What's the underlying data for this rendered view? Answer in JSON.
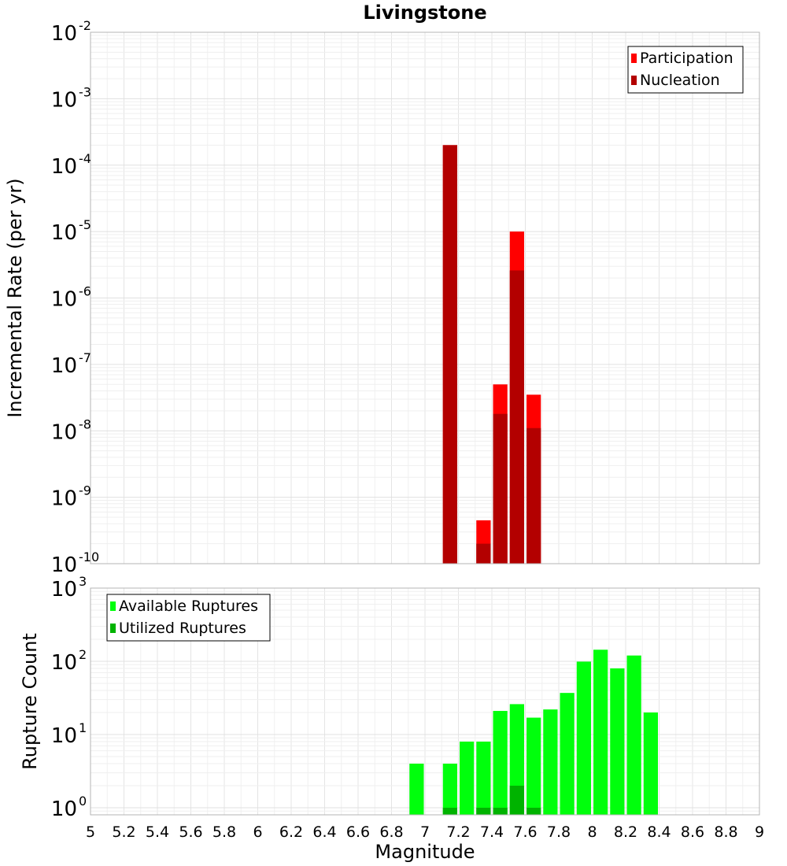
{
  "chart_data": [
    {
      "type": "bar",
      "title": "Livingstone",
      "xlabel": "",
      "ylabel": "Incremental Rate (per yr)",
      "xlim": [
        5,
        9
      ],
      "ylim": [
        1e-10,
        0.01
      ],
      "y_scale": "log",
      "y_tick_exponents": [
        "-10",
        "-9",
        "-8",
        "-7",
        "-6",
        "-5",
        "-4",
        "-3",
        "-2"
      ],
      "grid": true,
      "legend_placement": "top-right",
      "bin_width": 0.1,
      "series": [
        {
          "name": "Participation",
          "color": "#ff0000",
          "points": [
            {
              "x": 7.15,
              "y": 0.0002
            },
            {
              "x": 7.35,
              "y": 4.5e-10
            },
            {
              "x": 7.45,
              "y": 5e-08
            },
            {
              "x": 7.55,
              "y": 1e-05
            },
            {
              "x": 7.65,
              "y": 3.5e-08
            }
          ]
        },
        {
          "name": "Nucleation",
          "color": "#b30000",
          "points": [
            {
              "x": 7.15,
              "y": 0.0002
            },
            {
              "x": 7.35,
              "y": 2e-10
            },
            {
              "x": 7.45,
              "y": 1.8e-08
            },
            {
              "x": 7.55,
              "y": 2.6e-06
            },
            {
              "x": 7.65,
              "y": 1.1e-08
            }
          ]
        }
      ]
    },
    {
      "type": "bar",
      "title": "",
      "xlabel": "Magnitude",
      "ylabel": "Rupture Count",
      "xlim": [
        5,
        9
      ],
      "ylim": [
        0.8,
        1000
      ],
      "y_scale": "log",
      "y_tick_exponents": [
        "0",
        "1",
        "2",
        "3"
      ],
      "x_tick_labels": [
        "5",
        "5.2",
        "5.4",
        "5.6",
        "5.8",
        "6",
        "6.2",
        "6.4",
        "6.6",
        "6.8",
        "7",
        "7.2",
        "7.4",
        "7.6",
        "7.8",
        "8",
        "8.2",
        "8.4",
        "8.6",
        "8.8",
        "9"
      ],
      "grid": true,
      "legend_placement": "top-left",
      "bin_width": 0.1,
      "series": [
        {
          "name": "Available Ruptures",
          "color": "#00ff0c",
          "points": [
            {
              "x": 6.95,
              "y": 4
            },
            {
              "x": 7.15,
              "y": 4
            },
            {
              "x": 7.25,
              "y": 8
            },
            {
              "x": 7.35,
              "y": 8
            },
            {
              "x": 7.45,
              "y": 21
            },
            {
              "x": 7.55,
              "y": 26
            },
            {
              "x": 7.65,
              "y": 17
            },
            {
              "x": 7.75,
              "y": 22
            },
            {
              "x": 7.85,
              "y": 37
            },
            {
              "x": 7.95,
              "y": 99
            },
            {
              "x": 8.05,
              "y": 144
            },
            {
              "x": 8.15,
              "y": 80
            },
            {
              "x": 8.25,
              "y": 120
            },
            {
              "x": 8.35,
              "y": 20
            }
          ]
        },
        {
          "name": "Utilized Ruptures",
          "color": "#00b300",
          "points": [
            {
              "x": 7.15,
              "y": 1
            },
            {
              "x": 7.35,
              "y": 1
            },
            {
              "x": 7.45,
              "y": 1
            },
            {
              "x": 7.55,
              "y": 2
            },
            {
              "x": 7.65,
              "y": 1
            }
          ]
        }
      ]
    }
  ]
}
